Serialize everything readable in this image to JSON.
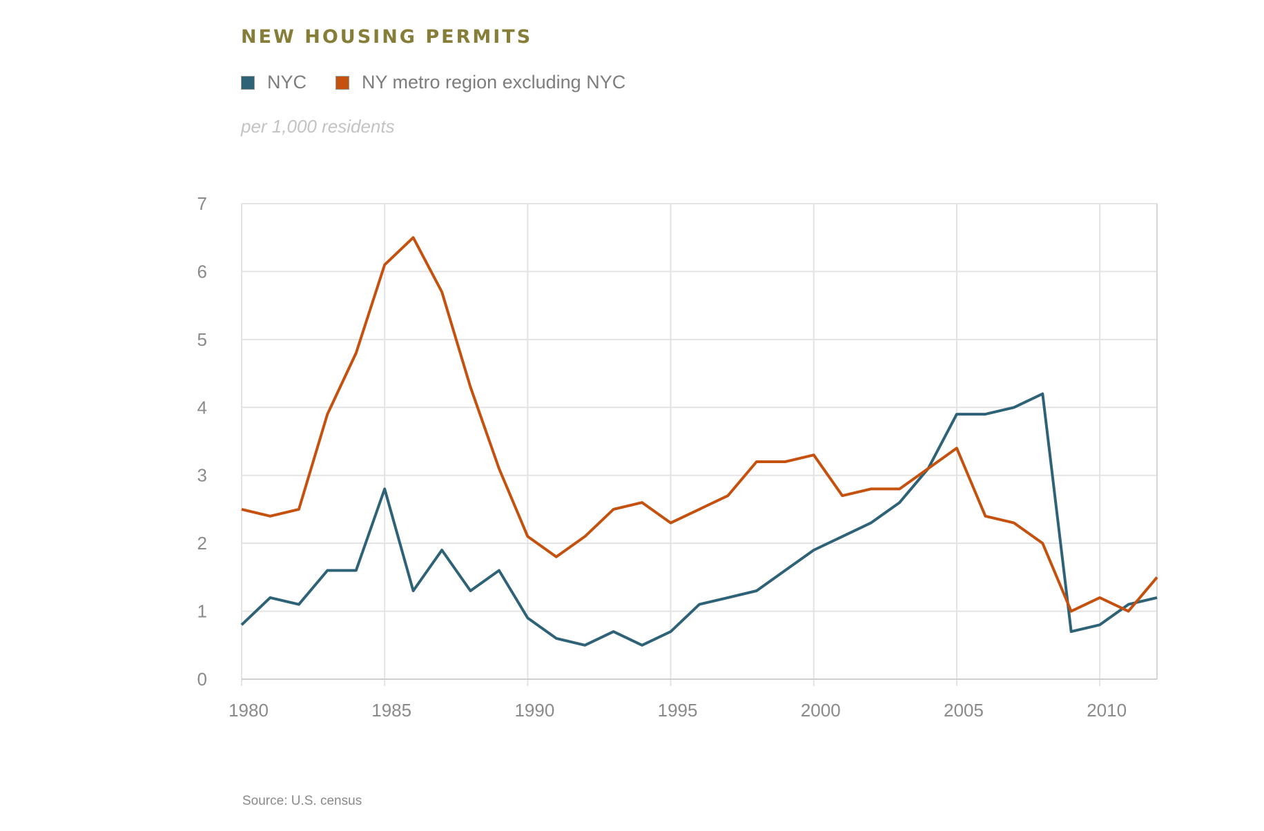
{
  "chart_data": {
    "type": "line",
    "title": "NEW HOUSING PERMITS",
    "subtitle": "per 1,000 residents",
    "source": "Source: U.S. census",
    "xlabel": "",
    "ylabel": "",
    "xlim": [
      1980,
      2012
    ],
    "ylim": [
      0,
      7
    ],
    "x_ticks": [
      1980,
      1985,
      1990,
      1995,
      2000,
      2005,
      2010
    ],
    "y_ticks": [
      0,
      1,
      2,
      3,
      4,
      5,
      6,
      7
    ],
    "grid": true,
    "legend_position": "top-left",
    "x": [
      1980,
      1981,
      1982,
      1983,
      1984,
      1985,
      1986,
      1987,
      1988,
      1989,
      1990,
      1991,
      1992,
      1993,
      1994,
      1995,
      1996,
      1997,
      1998,
      1999,
      2000,
      2001,
      2002,
      2003,
      2004,
      2005,
      2006,
      2007,
      2008,
      2009,
      2010,
      2011,
      2012
    ],
    "series": [
      {
        "name": "NYC",
        "color": "#2e6277",
        "values": [
          0.8,
          1.2,
          1.1,
          1.6,
          1.6,
          2.8,
          1.3,
          1.9,
          1.3,
          1.6,
          0.9,
          0.6,
          0.5,
          0.7,
          0.5,
          0.7,
          1.1,
          1.2,
          1.3,
          1.6,
          1.9,
          2.1,
          2.3,
          2.6,
          3.1,
          3.9,
          3.9,
          4.0,
          4.2,
          0.7,
          0.8,
          1.1,
          1.2
        ]
      },
      {
        "name": "NY metro region excluding NYC",
        "color": "#c5510f",
        "values": [
          2.5,
          2.4,
          2.5,
          3.9,
          4.8,
          6.1,
          6.5,
          5.7,
          4.3,
          3.1,
          2.1,
          1.8,
          2.1,
          2.5,
          2.6,
          2.3,
          2.5,
          2.7,
          3.2,
          3.2,
          3.3,
          2.7,
          2.8,
          2.8,
          3.1,
          3.4,
          2.4,
          2.3,
          2.0,
          1.0,
          1.2,
          1.0,
          1.5
        ]
      }
    ]
  }
}
